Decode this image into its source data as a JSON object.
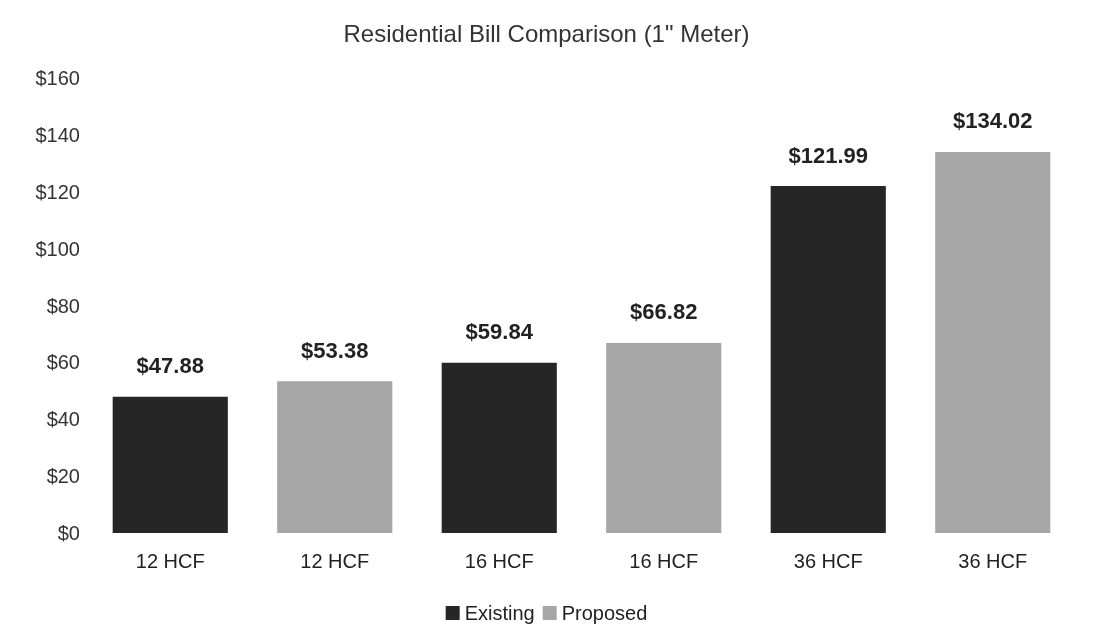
{
  "chart_data": {
    "type": "bar",
    "title": "Residential Bill Comparison (1\" Meter)",
    "categories": [
      "12 HCF",
      "12 HCF",
      "16 HCF",
      "16 HCF",
      "36 HCF",
      "36 HCF"
    ],
    "series": [
      {
        "name": "Existing",
        "color": "#262626",
        "values": [
          47.88,
          null,
          59.84,
          null,
          121.99,
          null
        ],
        "value_labels": [
          "$47.88",
          null,
          "$59.84",
          null,
          "$121.99",
          null
        ]
      },
      {
        "name": "Proposed",
        "color": "#a6a6a6",
        "values": [
          null,
          53.38,
          null,
          66.82,
          null,
          134.02
        ],
        "value_labels": [
          null,
          "$53.38",
          null,
          "$66.82",
          null,
          "$134.02"
        ]
      }
    ],
    "ylim": [
      0,
      160
    ],
    "yticks": [
      {
        "value": 0,
        "label": "$0"
      },
      {
        "value": 20,
        "label": "$20"
      },
      {
        "value": 40,
        "label": "$40"
      },
      {
        "value": 60,
        "label": "$60"
      },
      {
        "value": 80,
        "label": "$80"
      },
      {
        "value": 100,
        "label": "$100"
      },
      {
        "value": 120,
        "label": "$120"
      },
      {
        "value": 140,
        "label": "$140"
      },
      {
        "value": 160,
        "label": "$160"
      }
    ],
    "grid": false,
    "legend": "bottom"
  }
}
